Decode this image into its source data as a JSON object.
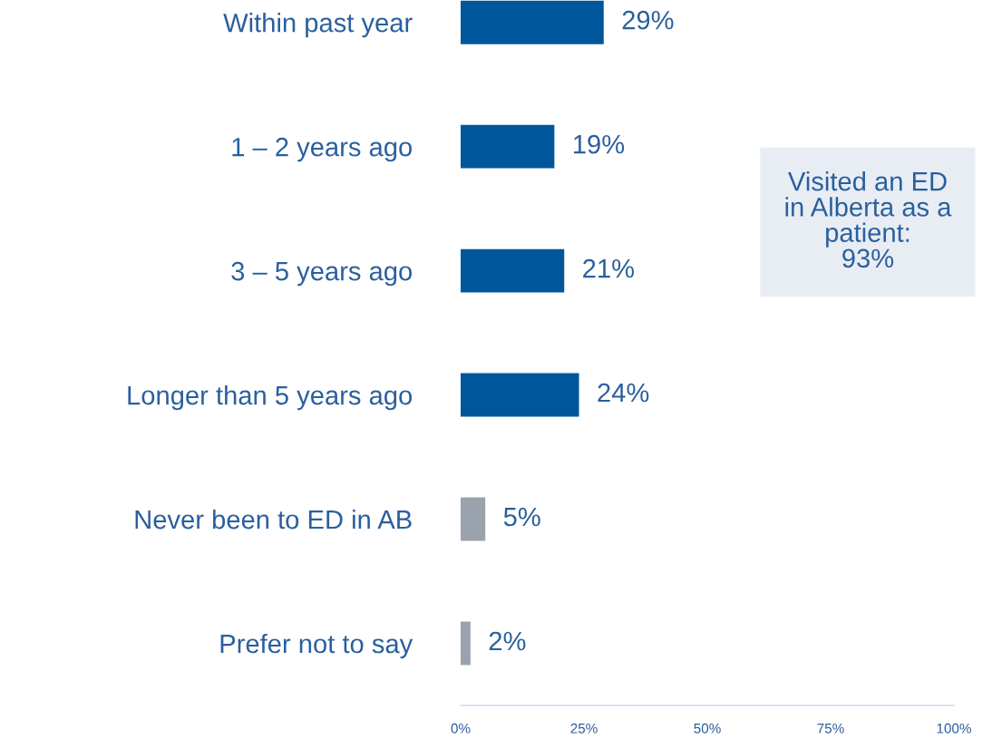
{
  "chart_data": {
    "type": "bar",
    "orientation": "horizontal",
    "categories": [
      "Within past year",
      "1 – 2 years ago",
      "3 – 5 years ago",
      "Longer than 5 years ago",
      "Never been to ED in AB",
      "Prefer not to say"
    ],
    "values": [
      29,
      19,
      21,
      24,
      5,
      2
    ],
    "colors": [
      "#00569a",
      "#00569a",
      "#00569a",
      "#00569a",
      "#9aa3ad",
      "#9aa3ad"
    ],
    "value_labels": [
      "29%",
      "19%",
      "21%",
      "24%",
      "5%",
      "2%"
    ],
    "xlim": [
      0,
      100
    ],
    "xticks": [
      {
        "value": 0,
        "label": "0%"
      },
      {
        "value": 25,
        "label": "25%"
      },
      {
        "value": 50,
        "label": "50%"
      },
      {
        "value": 75,
        "label": "75%"
      },
      {
        "value": 100,
        "label": "100%"
      }
    ],
    "annotations": [
      "Visited an ED\nin Alberta as a\npatient:\n93%"
    ],
    "grid": false
  }
}
